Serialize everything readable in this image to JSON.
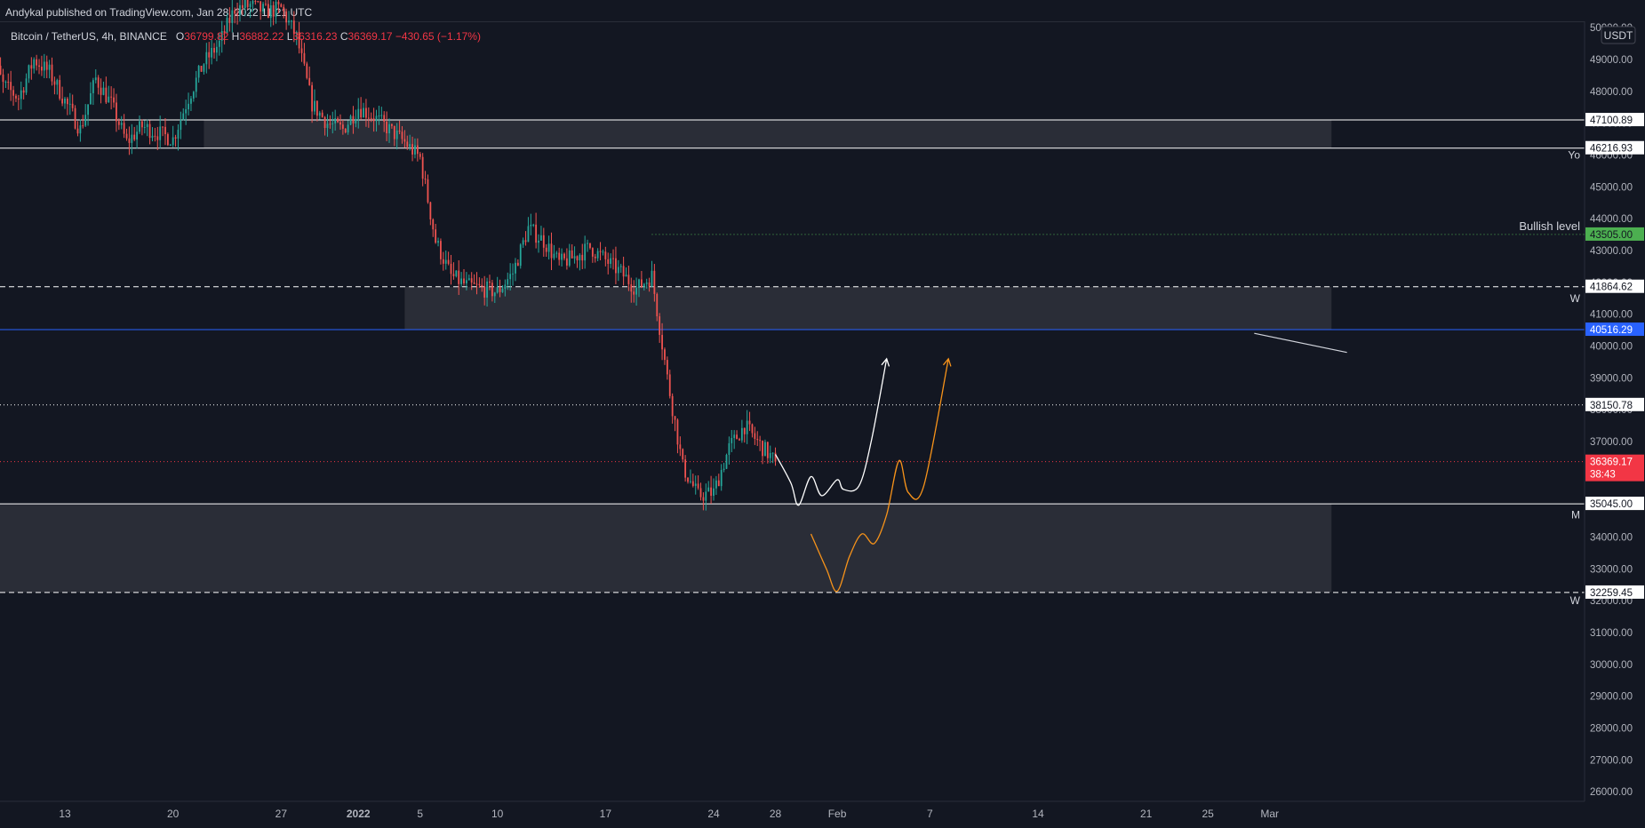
{
  "header": {
    "published": "Andykal published on TradingView.com, Jan 28, 2022 11:21 UTC"
  },
  "legend": {
    "symbol": "Bitcoin / TetherUS, 4h, BINANCE",
    "open_label": "O",
    "open": "36799.82",
    "high_label": "H",
    "high": "36882.22",
    "low_label": "L",
    "low": "36316.23",
    "close_label": "C",
    "close": "36369.17",
    "change": "−430.65 (−1.17%)"
  },
  "colors": {
    "background": "#131722",
    "up": "#26a69a",
    "down": "#ef5350",
    "zone": "#2a2d37",
    "blue_line": "#2962ff",
    "orange_path": "#f7931a",
    "white_path": "#ffffff",
    "last_price": "#f23645",
    "bullish_badge": "#4caf50"
  },
  "chart_data": {
    "type": "candlestick",
    "currency": "USDT",
    "interval": "4h",
    "ylim": [
      25700,
      50200
    ],
    "y_ticks": [
      "50000.00",
      "49000.00",
      "48000.00",
      "47000.00",
      "46000.00",
      "45000.00",
      "44000.00",
      "43000.00",
      "42000.00",
      "41000.00",
      "40000.00",
      "39000.00",
      "38000.00",
      "37000.00",
      "36000.00",
      "35000.00",
      "34000.00",
      "33000.00",
      "32000.00",
      "31000.00",
      "30000.00",
      "29000.00",
      "28000.00",
      "27000.00",
      "26000.00"
    ],
    "x_ticks": [
      {
        "label": "13",
        "date": "2021-12-13"
      },
      {
        "label": "20",
        "date": "2021-12-20"
      },
      {
        "label": "27",
        "date": "2021-12-27"
      },
      {
        "label": "2022",
        "date": "2022-01-01",
        "bold": true
      },
      {
        "label": "5",
        "date": "2022-01-05"
      },
      {
        "label": "10",
        "date": "2022-01-10"
      },
      {
        "label": "17",
        "date": "2022-01-17"
      },
      {
        "label": "24",
        "date": "2022-01-24"
      },
      {
        "label": "28",
        "date": "2022-01-28"
      },
      {
        "label": "Feb",
        "date": "2022-02-01"
      },
      {
        "label": "7",
        "date": "2022-02-07"
      },
      {
        "label": "14",
        "date": "2022-02-14"
      },
      {
        "label": "21",
        "date": "2022-02-21"
      },
      {
        "label": "25",
        "date": "2022-02-25"
      },
      {
        "label": "Mar",
        "date": "2022-03-01"
      }
    ],
    "price_path": [
      [
        "2021-12-08",
        49500
      ],
      [
        "2021-12-09",
        48200
      ],
      [
        "2021-12-10",
        47800
      ],
      [
        "2021-12-11",
        49000
      ],
      [
        "2021-12-12",
        48600
      ],
      [
        "2021-12-13",
        47700
      ],
      [
        "2021-12-14",
        46800
      ],
      [
        "2021-12-15",
        48400
      ],
      [
        "2021-12-16",
        47600
      ],
      [
        "2021-12-17",
        46400
      ],
      [
        "2021-12-18",
        46900
      ],
      [
        "2021-12-19",
        46700
      ],
      [
        "2021-12-20",
        46500
      ],
      [
        "2021-12-21",
        47800
      ],
      [
        "2021-12-22",
        48900
      ],
      [
        "2021-12-23",
        49500
      ],
      [
        "2021-12-24",
        50600
      ],
      [
        "2021-12-25",
        50700
      ],
      [
        "2021-12-26",
        50500
      ],
      [
        "2021-12-27",
        50600
      ],
      [
        "2021-12-28",
        49700
      ],
      [
        "2021-12-29",
        47600
      ],
      [
        "2021-12-30",
        47000
      ],
      [
        "2021-12-31",
        46800
      ],
      [
        "2022-01-01",
        47500
      ],
      [
        "2022-01-02",
        47200
      ],
      [
        "2022-01-03",
        46800
      ],
      [
        "2022-01-04",
        46400
      ],
      [
        "2022-01-05",
        45900
      ],
      [
        "2022-01-06",
        43300
      ],
      [
        "2022-01-07",
        42200
      ],
      [
        "2022-01-08",
        41900
      ],
      [
        "2022-01-09",
        41800
      ],
      [
        "2022-01-10",
        41700
      ],
      [
        "2022-01-11",
        42300
      ],
      [
        "2022-01-12",
        43700
      ],
      [
        "2022-01-13",
        43300
      ],
      [
        "2022-01-14",
        42600
      ],
      [
        "2022-01-15",
        42800
      ],
      [
        "2022-01-16",
        43100
      ],
      [
        "2022-01-17",
        42700
      ],
      [
        "2022-01-18",
        42300
      ],
      [
        "2022-01-19",
        41800
      ],
      [
        "2022-01-20",
        42200
      ],
      [
        "2022-01-21",
        39000
      ],
      [
        "2022-01-22",
        36200
      ],
      [
        "2022-01-23",
        35300
      ],
      [
        "2022-01-24",
        35400
      ],
      [
        "2022-01-25",
        36800
      ],
      [
        "2022-01-26",
        37500
      ],
      [
        "2022-01-27",
        36900
      ],
      [
        "2022-01-28",
        36369
      ]
    ],
    "levels": [
      {
        "price": 47100.89,
        "label": "47100.89",
        "style": "solid",
        "color": "#ffffff"
      },
      {
        "price": 46216.93,
        "label": "46216.93",
        "style": "solid",
        "color": "#ffffff"
      },
      {
        "price": 43505.0,
        "label": "43505.00",
        "style": "dotted",
        "color": "#4caf50"
      },
      {
        "price": 41864.62,
        "label": "41864.62",
        "style": "dashed",
        "color": "#ffffff"
      },
      {
        "price": 40516.29,
        "label": "40516.29",
        "style": "solid",
        "color": "#2962ff"
      },
      {
        "price": 38150.78,
        "label": "38150.78",
        "style": "dotted",
        "color": "#ffffff"
      },
      {
        "price": 36369.17,
        "label": "36369.17",
        "style": "dotted",
        "color": "#f23645",
        "sub": "38:43"
      },
      {
        "price": 35045.0,
        "label": "35045.00",
        "style": "solid",
        "color": "#ffffff"
      },
      {
        "price": 32259.45,
        "label": "32259.45",
        "style": "dashed",
        "color": "#ffffff"
      }
    ],
    "zones": [
      {
        "from": "2021-12-22",
        "to": "2022-03-05",
        "low": 46216.93,
        "high": 47100.89
      },
      {
        "from": "2022-01-04",
        "to": "2022-03-05",
        "low": 40516.29,
        "high": 41864.62
      },
      {
        "from": "2021-12-04",
        "to": "2022-03-05",
        "low": 32259.45,
        "high": 35045.0
      }
    ],
    "annotations": [
      {
        "text": "Yo",
        "price": 46000
      },
      {
        "text": "Bullish level",
        "price": 43750
      },
      {
        "text": "W",
        "price": 41500
      },
      {
        "text": "M",
        "price": 34700
      },
      {
        "text": "W",
        "price": 32000
      }
    ],
    "white_projection": [
      [
        "2022-01-28",
        36600
      ],
      [
        "2022-01-29",
        35700
      ],
      [
        "2022-01-29.5",
        35000
      ],
      [
        "2022-01-30.3",
        35900
      ],
      [
        "2022-01-31",
        35300
      ],
      [
        "2022-02-01",
        35800
      ],
      [
        "2022-02-01.4",
        35500
      ],
      [
        "2022-02-02.4",
        35600
      ],
      [
        "2022-02-03.2",
        37000
      ],
      [
        "2022-02-04.2",
        39600
      ]
    ],
    "orange_projection": [
      [
        "2022-01-30.3",
        34100
      ],
      [
        "2022-01-31.3",
        33000
      ],
      [
        "2022-02-01",
        32300
      ],
      [
        "2022-02-01.8",
        33400
      ],
      [
        "2022-02-02.6",
        34100
      ],
      [
        "2022-02-03.4",
        33800
      ],
      [
        "2022-02-04.2",
        34700
      ],
      [
        "2022-02-05",
        36400
      ],
      [
        "2022-02-05.6",
        35400
      ],
      [
        "2022-02-06.6",
        35600
      ],
      [
        "2022-02-08.2",
        39600
      ]
    ],
    "trend_arrow": [
      [
        "2022-02-28",
        40400
      ],
      [
        "2022-03-06",
        39800
      ]
    ]
  }
}
